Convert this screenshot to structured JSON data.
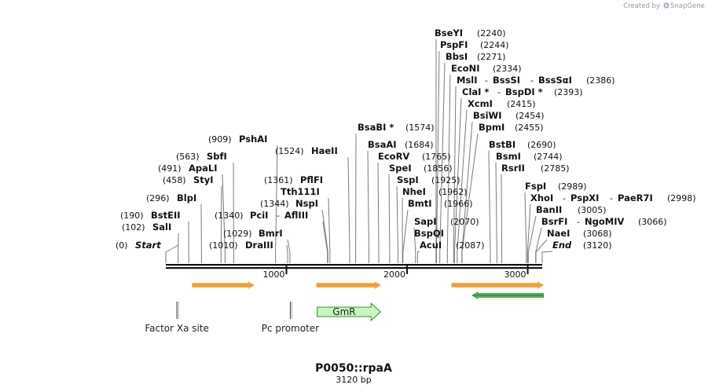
{
  "credit": {
    "prefix": "Created by",
    "brand": "SnapGene"
  },
  "plasmid": {
    "name": "P0050::rpaA",
    "length_bp": 3120,
    "length_label": "3120 bp"
  },
  "ruler": {
    "ticks": [
      1000,
      2000,
      3000
    ]
  },
  "sites": [
    {
      "label": "Start",
      "pos": 0,
      "italic": true
    },
    {
      "label": "SalI",
      "pos": 102
    },
    {
      "label": "BstEII",
      "pos": 190
    },
    {
      "label": "BlpI",
      "pos": 296
    },
    {
      "label": "StyI",
      "pos": 458
    },
    {
      "label": "ApaLI",
      "pos": 491
    },
    {
      "label": "SbfI",
      "pos": 563
    },
    {
      "label": "PshAI",
      "pos": 909
    },
    {
      "label": "DraIII",
      "pos": 1010
    },
    {
      "label": "BmrI",
      "pos": 1029
    },
    {
      "label": "PciI - AflIII",
      "pos": 1340
    },
    {
      "label": "NspI",
      "pos": 1344
    },
    {
      "label": "Tth111I",
      "pos": 1361
    },
    {
      "label": "PflFI",
      "pos": 1361
    },
    {
      "label": "HaeII",
      "pos": 1524
    },
    {
      "label": "BsaBI *",
      "pos": 1574
    },
    {
      "label": "BsaAI",
      "pos": 1684
    },
    {
      "label": "EcoRV",
      "pos": 1765
    },
    {
      "label": "SpeI",
      "pos": 1856
    },
    {
      "label": "SspI",
      "pos": 1925
    },
    {
      "label": "NheI",
      "pos": 1962
    },
    {
      "label": "BmtI",
      "pos": 1966
    },
    {
      "label": "SapI",
      "pos": 2070
    },
    {
      "label": "BspQI",
      "pos": 2070
    },
    {
      "label": "AcuI",
      "pos": 2087
    },
    {
      "label": "BseYI",
      "pos": 2240
    },
    {
      "label": "PspFI",
      "pos": 2244
    },
    {
      "label": "BbsI",
      "pos": 2271
    },
    {
      "label": "EcoNI",
      "pos": 2334
    },
    {
      "label": "MslI - BssSI - BssSαI",
      "pos": 2386
    },
    {
      "label": "ClaI * - BspDI *",
      "pos": 2393
    },
    {
      "label": "XcmI",
      "pos": 2415
    },
    {
      "label": "BsiWI",
      "pos": 2454
    },
    {
      "label": "BpmI",
      "pos": 2455
    },
    {
      "label": "BstBI",
      "pos": 2690
    },
    {
      "label": "BsmI",
      "pos": 2744
    },
    {
      "label": "RsrII",
      "pos": 2785
    },
    {
      "label": "FspI",
      "pos": 2989
    },
    {
      "label": "XhoI - PspXI - PaeR7I",
      "pos": 2998
    },
    {
      "label": "BanII",
      "pos": 3005
    },
    {
      "label": "BsrFI - NgoMIV",
      "pos": 3066
    },
    {
      "label": "NaeI",
      "pos": 3068
    },
    {
      "label": "End",
      "pos": 3120,
      "italic": true
    }
  ],
  "site_text": [
    "(0)",
    "Start",
    "(102)",
    "SalI",
    "(190)",
    "BstEII",
    "(296)",
    "BlpI",
    "(458)",
    "StyI",
    "(491)",
    "ApaLI",
    "(563)",
    "SbfI",
    "(909)",
    "PshAI",
    "(1010)",
    "DraIII",
    "(1029)",
    "BmrI",
    "(1340)",
    "PciI",
    "-",
    "AflIII",
    "(1344)",
    "NspI",
    "Tth111I",
    "(1361)",
    "PflFI",
    "(1524)",
    "HaeII",
    "BsaBI *",
    "(1574)",
    "BsaAI",
    "(1684)",
    "EcoRV",
    "(1765)",
    "SpeI",
    "(1856)",
    "SspI",
    "(1925)",
    "NheI",
    "(1962)",
    "BmtI",
    "(1966)",
    "SapI",
    "(2070)",
    "BspQI",
    "AcuI",
    "(2087)",
    "BseYI",
    "(2240)",
    "PspFI",
    "(2244)",
    "BbsI",
    "(2271)",
    "EcoNI",
    "(2334)",
    "MslI",
    "-",
    "BssSI",
    "-",
    "BssSαI",
    "(2386)",
    "ClaI *",
    "-",
    "BspDI *",
    "(2393)",
    "XcmI",
    "(2415)",
    "BsiWI",
    "(2454)",
    "BpmI",
    "(2455)",
    "BstBI",
    "(2690)",
    "BsmI",
    "(2744)",
    "RsrII",
    "(2785)",
    "FspI",
    "(2989)",
    "XhoI",
    "-",
    "PspXI",
    "-",
    "PaeR7I",
    "(2998)",
    "BanII",
    "(3005)",
    "BsrFI",
    "-",
    "NgoMIV",
    "(3066)",
    "NaeI",
    "(3068)",
    "End",
    "(3120)"
  ],
  "features": [
    {
      "name": "orange-arrow-1",
      "type": "arrow",
      "start": 220,
      "end": 730,
      "direction": "forward",
      "color": "#f0a030"
    },
    {
      "name": "orange-arrow-2",
      "type": "arrow",
      "start": 1250,
      "end": 1780,
      "direction": "forward",
      "color": "#f0a030"
    },
    {
      "name": "orange-arrow-3",
      "type": "arrow",
      "start": 2370,
      "end": 3130,
      "direction": "forward",
      "color": "#f0a030"
    },
    {
      "name": "green-arrow",
      "type": "arrow",
      "start": 2540,
      "end": 3130,
      "direction": "reverse",
      "color": "#2e8b2e"
    },
    {
      "name": "factor-xa-site",
      "type": "site",
      "pos": 92,
      "label": "Factor Xa site"
    },
    {
      "name": "pc-promoter",
      "type": "site",
      "pos": 1032,
      "label": "Pc promoter"
    },
    {
      "name": "gmr-gene",
      "type": "gene",
      "start": 1255,
      "end": 1780,
      "label": "GmR",
      "color": "#c8f5c0"
    }
  ]
}
